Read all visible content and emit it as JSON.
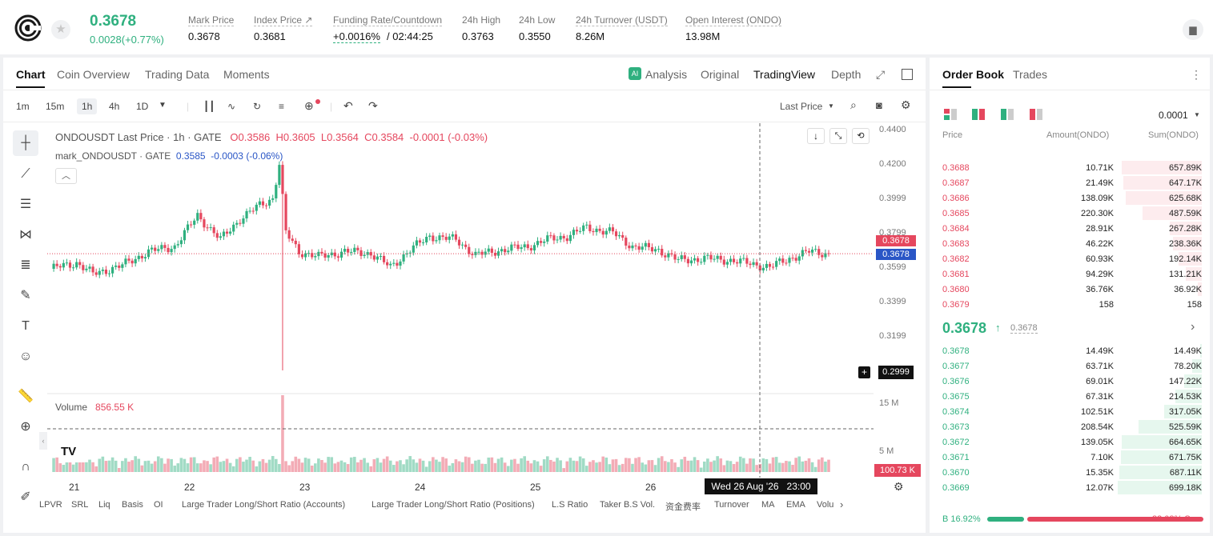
{
  "ticker": {
    "price": "0.3678",
    "change": "0.0028(+0.77%)"
  },
  "stats": [
    {
      "label": "Mark Price",
      "value": "0.3678"
    },
    {
      "label": "Index Price ↗",
      "value": "0.3681"
    },
    {
      "label": "Funding Rate/Countdown",
      "value": "+0.0016%",
      "value2": "/ 02:44:25"
    },
    {
      "label": "24h High",
      "value": "0.3763"
    },
    {
      "label": "24h Low",
      "value": "0.3550"
    },
    {
      "label": "24h Turnover (USDT)",
      "value": "8.26M"
    },
    {
      "label": "Open Interest (ONDO)",
      "value": "13.98M"
    }
  ],
  "chart_tabs": [
    "Chart",
    "Coin Overview",
    "Trading Data",
    "Moments"
  ],
  "chart_modes": {
    "analysis": "Analysis",
    "original": "Original",
    "tradingview": "TradingView",
    "depth": "Depth"
  },
  "timeframes": [
    "1m",
    "15m",
    "1h",
    "4h",
    "1D"
  ],
  "price_type": "Last Price",
  "legend": {
    "main": "ONDOUSDT Last Price · 1h · GATE",
    "o": "O0.3586",
    "h": "H0.3605",
    "l": "L0.3564",
    "c": "C0.3584",
    "chg": "-0.0001 (-0.03%)",
    "mark": "mark_ONDOUSDT · GATE",
    "mark_val": "0.3585",
    "mark_chg": "-0.0003 (-0.06%)",
    "volume_label": "Volume",
    "volume_val": "856.55 K"
  },
  "y_ticks": [
    "0.4400",
    "0.4200",
    "0.3999",
    "0.3799",
    "0.3599",
    "0.3399",
    "0.3199"
  ],
  "vol_ticks": [
    "15 M",
    "5 M"
  ],
  "tags": {
    "last": "0.3678",
    "mark": "0.3678",
    "cursor": "0.2999",
    "vol": "100.73 K"
  },
  "x_ticks": [
    "21",
    "22",
    "23",
    "24",
    "25",
    "26"
  ],
  "crosshair_time": "Wed 26 Aug '26   23:00",
  "indicators": [
    "LPVR",
    "SRL",
    "Liq",
    "Basis",
    "OI",
    "Large Trader Long/Short Ratio (Accounts)",
    "Large Trader Long/Short Ratio (Positions)",
    "L.S Ratio",
    "Taker B.S Vol.",
    "资金费率",
    "Turnover",
    "MA",
    "EMA",
    "Volu"
  ],
  "orderbook": {
    "tabs": [
      "Order Book",
      "Trades"
    ],
    "precision": "0.0001",
    "cols": [
      "Price",
      "Amount(ONDO)",
      "Sum(ONDO)"
    ],
    "asks": [
      [
        "0.3688",
        "10.71K",
        "657.89K",
        0.95
      ],
      [
        "0.3687",
        "21.49K",
        "647.17K",
        0.93
      ],
      [
        "0.3686",
        "138.09K",
        "625.68K",
        0.9
      ],
      [
        "0.3685",
        "220.30K",
        "487.59K",
        0.7
      ],
      [
        "0.3684",
        "28.91K",
        "267.28K",
        0.38
      ],
      [
        "0.3683",
        "46.22K",
        "238.36K",
        0.34
      ],
      [
        "0.3682",
        "60.93K",
        "192.14K",
        0.28
      ],
      [
        "0.3681",
        "94.29K",
        "131.21K",
        0.19
      ],
      [
        "0.3680",
        "36.76K",
        "36.92K",
        0.05
      ],
      [
        "0.3679",
        "158",
        "158",
        0.0
      ]
    ],
    "mid_price": "0.3678",
    "mid_mark": "0.3678",
    "bids": [
      [
        "0.3678",
        "14.49K",
        "14.49K",
        0.02
      ],
      [
        "0.3677",
        "63.71K",
        "78.20K",
        0.11
      ],
      [
        "0.3676",
        "69.01K",
        "147.22K",
        0.21
      ],
      [
        "0.3675",
        "67.31K",
        "214.53K",
        0.31
      ],
      [
        "0.3674",
        "102.51K",
        "317.05K",
        0.45
      ],
      [
        "0.3673",
        "208.54K",
        "525.59K",
        0.75
      ],
      [
        "0.3672",
        "139.05K",
        "664.65K",
        0.95
      ],
      [
        "0.3671",
        "7.10K",
        "671.75K",
        0.96
      ],
      [
        "0.3670",
        "15.35K",
        "687.11K",
        0.98
      ],
      [
        "0.3669",
        "12.07K",
        "699.18K",
        1.0
      ]
    ],
    "buy_ratio": "B 16.92%",
    "sell_ratio": "83.08% S",
    "buy_frac": 0.1692
  },
  "colors": {
    "up": "#2fb07f",
    "down": "#e5475e"
  }
}
